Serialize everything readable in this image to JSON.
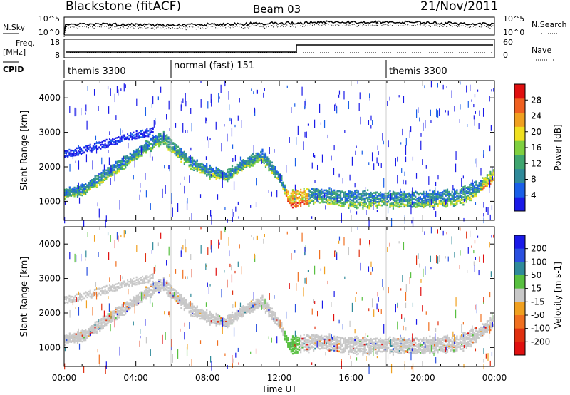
{
  "header": {
    "station": "Blackstone (fitACF)",
    "beam": "Beam 03",
    "date": "21/Nov/2011"
  },
  "noise_panel": {
    "left_label": "N.Sky",
    "left_ticks": [
      "10^5",
      "10^0"
    ],
    "right_ticks": [
      "10^5",
      "10^0"
    ],
    "right_label": "N.Search"
  },
  "freq_panel": {
    "left_label_1": "Freq.",
    "left_label_2": "[MHz]",
    "left_ticks": [
      "18",
      "8"
    ],
    "right_ticks": [
      "60",
      "0"
    ],
    "right_label": "Nave"
  },
  "cpid_panel": {
    "label": "CPID",
    "segments": [
      {
        "name": "themis 3300",
        "start_hour": 0
      },
      {
        "name": "normal (fast) 151",
        "start_hour": 6
      },
      {
        "name": "themis 3300",
        "start_hour": 18
      }
    ]
  },
  "x_axis": {
    "title": "Time UT",
    "ticks": [
      "00:00",
      "04:00",
      "08:00",
      "12:00",
      "16:00",
      "20:00",
      "00:00"
    ]
  },
  "colors": {
    "power_scale": [
      "#1a1ae8",
      "#1a5fe8",
      "#2f8a9a",
      "#3fa670",
      "#7fd040",
      "#f0e020",
      "#f0a020",
      "#f06020",
      "#e01010"
    ],
    "velocity_scale": [
      "#1a1ae8",
      "#2a50e0",
      "#2f8a9a",
      "#58c040",
      "#c8c8c8",
      "#f0a020",
      "#f07020",
      "#e03010",
      "#e01010"
    ],
    "gray_line": "#c0c0c0"
  },
  "chart_data": [
    {
      "type": "heatmap",
      "title": "Power",
      "xlabel": "Time UT",
      "ylabel": "Slant Range [km]",
      "xlim": [
        0,
        24
      ],
      "ylim": [
        450,
        4500
      ],
      "yticks": [
        1000,
        2000,
        3000,
        4000
      ],
      "colorbar": {
        "label": "Power [dB]",
        "range": [
          0,
          32
        ],
        "ticks": [
          "28",
          "24",
          "20",
          "16",
          "12",
          "8",
          "4"
        ]
      },
      "main_band": {
        "hours": [
          0,
          1,
          2,
          3,
          4,
          5,
          5.5,
          6,
          7,
          8,
          9,
          10,
          11,
          12,
          12.5,
          13,
          14,
          16,
          18,
          20,
          22,
          23,
          24
        ],
        "range_km": [
          1250,
          1350,
          1700,
          2050,
          2400,
          2750,
          2850,
          2600,
          2150,
          1900,
          1750,
          2100,
          2350,
          1700,
          1100,
          1100,
          1200,
          1080,
          1080,
          1070,
          1150,
          1400,
          1800
        ]
      },
      "upper_band": {
        "hours": [
          0,
          0.5,
          1,
          2,
          3,
          4,
          5
        ],
        "range_km": [
          2400,
          2450,
          2500,
          2650,
          2800,
          2950,
          3050
        ]
      }
    },
    {
      "type": "heatmap",
      "title": "Velocity",
      "xlabel": "Time UT",
      "ylabel": "Slant Range [km]",
      "xlim": [
        0,
        24
      ],
      "ylim": [
        450,
        4500
      ],
      "yticks": [
        1000,
        2000,
        3000,
        4000
      ],
      "colorbar": {
        "label": "Velocity [m s-1]",
        "range": [
          -250,
          250
        ],
        "ticks": [
          "200",
          "100",
          "50",
          "15",
          "-15",
          "-50",
          "-100",
          "-200"
        ]
      }
    }
  ]
}
